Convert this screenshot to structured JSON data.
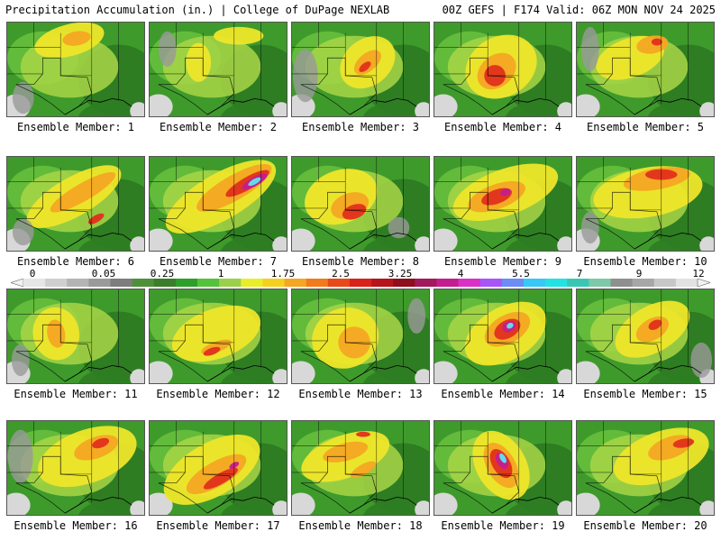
{
  "header": {
    "left": "Precipitation Accumulation (in.) | College of DuPage NEXLAB",
    "right": "00Z GEFS | F174 Valid: 06Z MON NOV 24 2025"
  },
  "legend": {
    "labels": [
      "0",
      "0.05",
      "0.25",
      "1",
      "1.75",
      "2.5",
      "3.25",
      "4",
      "5.5",
      "7",
      "9",
      "12"
    ],
    "colors": [
      "#e6e6e6",
      "#cfcfcf",
      "#b4b4b4",
      "#9a9a9a",
      "#7d7d7d",
      "#4e8f3a",
      "#3a7d2a",
      "#2f9e2a",
      "#55c23b",
      "#9bd14a",
      "#e9ee2a",
      "#f5d11f",
      "#f5a623",
      "#f07b1d",
      "#e8491a",
      "#d8231a",
      "#b5141a",
      "#8e0e1c",
      "#a11a5c",
      "#c21e8f",
      "#d930c6",
      "#a855f7",
      "#6b8df5",
      "#37c8f5",
      "#22e2e2",
      "#39c7b4",
      "#7ec9a8",
      "#8f8f8f",
      "#a7a7a7",
      "#c7c7c7",
      "#e2e2e2"
    ]
  },
  "members": [
    {
      "label": "Ensemble Member: 1"
    },
    {
      "label": "Ensemble Member: 2"
    },
    {
      "label": "Ensemble Member: 3"
    },
    {
      "label": "Ensemble Member: 4"
    },
    {
      "label": "Ensemble Member: 5"
    },
    {
      "label": "Ensemble Member: 6"
    },
    {
      "label": "Ensemble Member: 7"
    },
    {
      "label": "Ensemble Member: 8"
    },
    {
      "label": "Ensemble Member: 9"
    },
    {
      "label": "Ensemble Member: 10"
    },
    {
      "label": "Ensemble Member: 11"
    },
    {
      "label": "Ensemble Member: 12"
    },
    {
      "label": "Ensemble Member: 13"
    },
    {
      "label": "Ensemble Member: 14"
    },
    {
      "label": "Ensemble Member: 15"
    },
    {
      "label": "Ensemble Member: 16"
    },
    {
      "label": "Ensemble Member: 17"
    },
    {
      "label": "Ensemble Member: 18"
    },
    {
      "label": "Ensemble Member: 19"
    },
    {
      "label": "Ensemble Member: 20"
    }
  ]
}
